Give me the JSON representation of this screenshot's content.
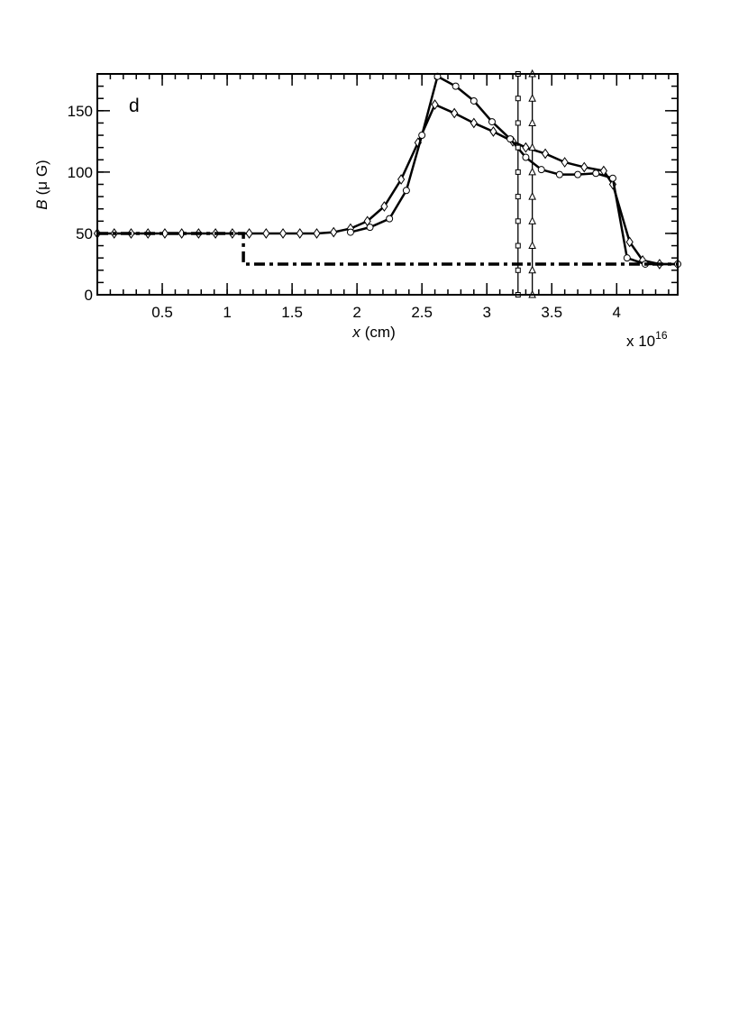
{
  "chart_data": {
    "type": "line",
    "annotation": "d",
    "x_label_symbol": "x",
    "x_label_unit": "(cm)",
    "x_scale_label": "x 10",
    "x_scale_exponent": "16",
    "y_label_symbol": "B",
    "y_label_unit": "(μ G)",
    "xlim": [
      0,
      4.47
    ],
    "ylim": [
      0,
      180
    ],
    "xticks": [
      0.5,
      1,
      1.5,
      2,
      2.5,
      3,
      3.5,
      4
    ],
    "yticks": [
      0,
      50,
      100,
      150
    ],
    "minor_ticks": true,
    "series": [
      {
        "color": "#000000",
        "marker": "diamond",
        "dash": "solid",
        "x": [
          0,
          0.13,
          0.26,
          0.39,
          0.52,
          0.65,
          0.78,
          0.91,
          1.04,
          1.17,
          1.3,
          1.43,
          1.56,
          1.69,
          1.82,
          1.95,
          2.08,
          2.21,
          2.34,
          2.47,
          2.6,
          2.75,
          2.9,
          3.05,
          3.2,
          3.3,
          3.45,
          3.6,
          3.75,
          3.9,
          3.97,
          4.1,
          4.2,
          4.33,
          4.47
        ],
        "values": [
          50,
          50,
          50,
          50,
          50,
          50,
          50,
          50,
          50,
          50,
          50,
          50,
          50,
          50,
          51,
          54,
          60,
          72,
          94,
          124,
          155,
          148,
          140,
          133,
          125,
          120,
          115,
          108,
          104,
          101,
          90,
          43,
          28,
          25,
          25
        ]
      },
      {
        "color": "#000000",
        "marker": "circle",
        "dash": "solid",
        "x": [
          1.95,
          2.1,
          2.25,
          2.38,
          2.5,
          2.62,
          2.76,
          2.9,
          3.04,
          3.18,
          3.3,
          3.42,
          3.56,
          3.7,
          3.84,
          3.97,
          4.08,
          4.22,
          4.47
        ],
        "values": [
          51,
          55,
          62,
          85,
          130,
          178,
          170,
          158,
          141,
          127,
          112,
          102,
          98,
          98,
          99,
          95,
          30,
          25,
          25
        ]
      },
      {
        "color": "#000000",
        "marker": "none",
        "dash": "dashdot",
        "x": [
          0,
          1.125,
          1.125,
          4.47
        ],
        "values": [
          50,
          50,
          25,
          25
        ]
      },
      {
        "color": "#000000",
        "marker": "square",
        "dash": "solid",
        "x": [
          3.24,
          3.24,
          3.24,
          3.24,
          3.24,
          3.24,
          3.24,
          3.24,
          3.24,
          3.24
        ],
        "values": [
          0,
          20,
          40,
          60,
          80,
          100,
          120,
          140,
          160,
          180
        ]
      },
      {
        "color": "#000000",
        "marker": "triangle",
        "dash": "solid",
        "x": [
          3.35,
          3.35,
          3.35,
          3.35,
          3.35,
          3.35,
          3.35,
          3.35,
          3.35,
          3.35
        ],
        "values": [
          0,
          20,
          40,
          60,
          80,
          100,
          120,
          140,
          160,
          180
        ]
      }
    ]
  }
}
